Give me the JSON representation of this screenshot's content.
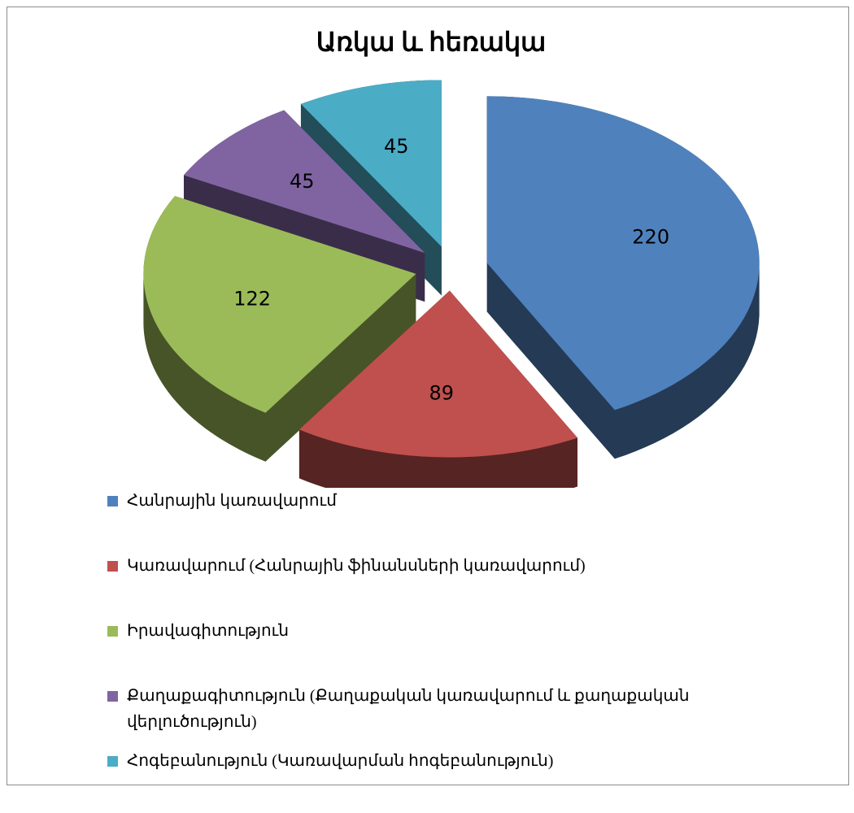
{
  "chart_data": {
    "type": "pie3d",
    "title": "Առկա և հեռակա",
    "categories": [
      "Հանրային կառավարում",
      "Կառավարում (Հանրային ֆինանսների կառավարում)",
      "Իրավագիտություն",
      "Քաղաքագիտություն (Քաղաքական կառավարում և քաղաքական վերլուծություն)",
      "Հոգեբանություն (Կառավարման հոգեբանություն)"
    ],
    "values": [
      220,
      89,
      122,
      45,
      45
    ],
    "colors": [
      "#4f81bd",
      "#c0504d",
      "#9bbb59",
      "#8064a2",
      "#4bacc6"
    ],
    "legend": "bottom"
  }
}
